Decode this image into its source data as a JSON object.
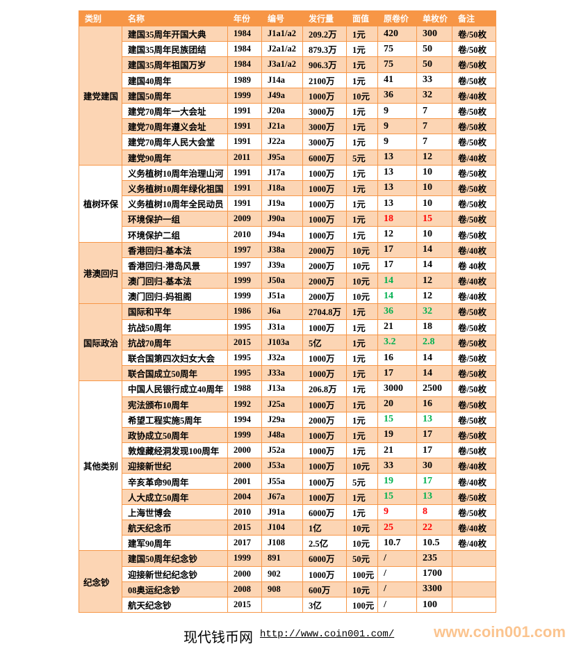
{
  "colors": {
    "header": "#f79646",
    "row_alt": "#fcd5b4",
    "red": "#ff0000",
    "green": "#00b050"
  },
  "headers": [
    "类别",
    "名称",
    "年份",
    "编号",
    "发行量",
    "面值",
    "原卷价",
    "单枚价",
    "备注"
  ],
  "groups": [
    {
      "category": "建党建国",
      "rows": [
        {
          "name": "建国35周年开国大典",
          "year": "1984",
          "code": "J1a1/a2",
          "issue": "209.2万",
          "face": "1元",
          "roll": "420",
          "single": "300",
          "note": "卷/50枚"
        },
        {
          "name": "建国35周年民族团结",
          "year": "1984",
          "code": "J2a1/a2",
          "issue": "879.3万",
          "face": "1元",
          "roll": "75",
          "single": "50",
          "note": "卷/50枚"
        },
        {
          "name": "建国35周年祖国万岁",
          "year": "1984",
          "code": "J3a1/a2",
          "issue": "906.3万",
          "face": "1元",
          "roll": "75",
          "single": "50",
          "note": "卷/50枚"
        },
        {
          "name": "建国40周年",
          "year": "1989",
          "code": "J14a",
          "issue": "2100万",
          "face": "1元",
          "roll": "41",
          "single": "33",
          "note": "卷/50枚"
        },
        {
          "name": "建国50周年",
          "year": "1999",
          "code": "J49a",
          "issue": "1000万",
          "face": "10元",
          "roll": "36",
          "single": "32",
          "note": "卷/40枚"
        },
        {
          "name": "建党70周年一大会址",
          "year": "1991",
          "code": "J20a",
          "issue": "3000万",
          "face": "1元",
          "roll": "9",
          "single": "7",
          "note": "卷/50枚"
        },
        {
          "name": "建党70周年遵义会址",
          "year": "1991",
          "code": "J21a",
          "issue": "3000万",
          "face": "1元",
          "roll": "9",
          "single": "7",
          "note": "卷/50枚"
        },
        {
          "name": "建党70周年人民大会堂",
          "year": "1991",
          "code": "J22a",
          "issue": "3000万",
          "face": "1元",
          "roll": "9",
          "single": "7",
          "note": "卷/50枚"
        },
        {
          "name": "建党90周年",
          "year": "2011",
          "code": "J95a",
          "issue": "6000万",
          "face": "5元",
          "roll": "13",
          "single": "12",
          "note": "卷/40枚"
        }
      ]
    },
    {
      "category": "植树环保",
      "rows": [
        {
          "name": "义务植树10周年治理山河",
          "year": "1991",
          "code": "J17a",
          "issue": "1000万",
          "face": "1元",
          "roll": "13",
          "single": "10",
          "note": "卷/50枚"
        },
        {
          "name": "义务植树10周年绿化祖国",
          "year": "1991",
          "code": "J18a",
          "issue": "1000万",
          "face": "1元",
          "roll": "13",
          "single": "10",
          "note": "卷/50枚"
        },
        {
          "name": "义务植树10周年全民动员",
          "year": "1991",
          "code": "J19a",
          "issue": "1000万",
          "face": "1元",
          "roll": "13",
          "single": "10",
          "note": "卷/50枚"
        },
        {
          "name": "环境保护一组",
          "year": "2009",
          "code": "J90a",
          "issue": "1000万",
          "face": "1元",
          "roll": "18",
          "single": "15",
          "note": "卷/50枚",
          "price_color": "red"
        },
        {
          "name": "环境保护二组",
          "year": "2010",
          "code": "J94a",
          "issue": "1000万",
          "face": "1元",
          "roll": "12",
          "single": "10",
          "note": "卷/50枚"
        }
      ]
    },
    {
      "category": "港澳回归",
      "rows": [
        {
          "name": "香港回归-基本法",
          "year": "1997",
          "code": "J38a",
          "issue": "2000万",
          "face": "10元",
          "roll": "17",
          "single": "14",
          "note": "卷/40枚"
        },
        {
          "name": "香港回归-港岛风景",
          "year": "1997",
          "code": "J39a",
          "issue": "2000万",
          "face": "10元",
          "roll": "17",
          "single": "14",
          "note": "卷 40枚"
        },
        {
          "name": "澳门回归-基本法",
          "year": "1999",
          "code": "J50a",
          "issue": "2000万",
          "face": "10元",
          "roll": "14",
          "single": "12",
          "note": "卷/40枚",
          "roll_color": "green"
        },
        {
          "name": "澳门回归-妈祖阁",
          "year": "1999",
          "code": "J51a",
          "issue": "2000万",
          "face": "10元",
          "roll": "14",
          "single": "12",
          "note": "卷/40枚",
          "roll_color": "green"
        }
      ]
    },
    {
      "category": "国际政治",
      "rows": [
        {
          "name": "国际和平年",
          "year": "1986",
          "code": "J6a",
          "issue": "2704.8万",
          "face": "1元",
          "roll": "36",
          "single": "32",
          "note": "卷/50枚",
          "price_color": "green"
        },
        {
          "name": "抗战50周年",
          "year": "1995",
          "code": "J31a",
          "issue": "1000万",
          "face": "1元",
          "roll": "21",
          "single": "18",
          "note": "卷/50枚"
        },
        {
          "name": "抗战70周年",
          "year": "2015",
          "code": "J103a",
          "issue": "5亿",
          "face": "1元",
          "roll": "3.2",
          "single": "2.8",
          "note": "卷/50枚",
          "price_color": "green"
        },
        {
          "name": "联合国第四次妇女大会",
          "year": "1995",
          "code": "J32a",
          "issue": "1000万",
          "face": "1元",
          "roll": "16",
          "single": "14",
          "note": "卷/50枚"
        },
        {
          "name": "联合国成立50周年",
          "year": "1995",
          "code": "J33a",
          "issue": "1000万",
          "face": "1元",
          "roll": "17",
          "single": "14",
          "note": "卷/50枚"
        }
      ]
    },
    {
      "category": "其他类别",
      "rows": [
        {
          "name": "中国人民银行成立40周年",
          "year": "1988",
          "code": "J13a",
          "issue": "206.8万",
          "face": "1元",
          "roll": "3000",
          "single": "2500",
          "note": "卷/50枚"
        },
        {
          "name": "宪法颁布10周年",
          "year": "1992",
          "code": "J25a",
          "issue": "1000万",
          "face": "1元",
          "roll": "20",
          "single": "16",
          "note": "卷/50枚"
        },
        {
          "name": "希望工程实施5周年",
          "year": "1994",
          "code": "J29a",
          "issue": "2000万",
          "face": "1元",
          "roll": "15",
          "single": "13",
          "note": "卷/50枚",
          "price_color": "green"
        },
        {
          "name": "政协成立50周年",
          "year": "1999",
          "code": "J48a",
          "issue": "1000万",
          "face": "1元",
          "roll": "19",
          "single": "17",
          "note": "卷/50枚"
        },
        {
          "name": "敦煌藏经洞发现100周年",
          "year": "2000",
          "code": "J52a",
          "issue": "1000万",
          "face": "1元",
          "roll": "21",
          "single": "17",
          "note": "卷/50枚"
        },
        {
          "name": "迎接新世纪",
          "year": "2000",
          "code": "J53a",
          "issue": "1000万",
          "face": "10元",
          "roll": "33",
          "single": "30",
          "note": "卷/40枚"
        },
        {
          "name": "辛亥革命90周年",
          "year": "2001",
          "code": "J55a",
          "issue": "1000万",
          "face": "5元",
          "roll": "19",
          "single": "17",
          "note": "卷/40枚",
          "price_color": "green"
        },
        {
          "name": "人大成立50周年",
          "year": "2004",
          "code": "J67a",
          "issue": "1000万",
          "face": "1元",
          "roll": "15",
          "single": "13",
          "note": "卷/50枚",
          "price_color": "green"
        },
        {
          "name": "上海世博会",
          "year": "2010",
          "code": "J91a",
          "issue": "6000万",
          "face": "1元",
          "roll": "9",
          "single": "8",
          "note": "卷/50枚",
          "price_color": "red"
        },
        {
          "name": "航天纪念币",
          "year": "2015",
          "code": "J104",
          "issue": "1亿",
          "face": "10元",
          "roll": "25",
          "single": "22",
          "note": "卷/40枚",
          "price_color": "red"
        },
        {
          "name": "建军90周年",
          "year": "2017",
          "code": "J108",
          "issue": "2.5亿",
          "face": "10元",
          "roll": "10.7",
          "single": "10.5",
          "note": "卷/40枚"
        }
      ]
    },
    {
      "category": "纪念钞",
      "rows": [
        {
          "name": "建国50周年纪念钞",
          "year": "1999",
          "code": "891",
          "issue": "6000万",
          "face": "50元",
          "roll": "/",
          "single": "235",
          "note": ""
        },
        {
          "name": "迎接新世纪纪念钞",
          "year": "2000",
          "code": "902",
          "issue": "1000万",
          "face": "100元",
          "roll": "/",
          "single": "1700",
          "note": ""
        },
        {
          "name": "08奥运纪念钞",
          "year": "2008",
          "code": "908",
          "issue": "600万",
          "face": "10元",
          "roll": "/",
          "single": "3300",
          "note": ""
        },
        {
          "name": "航天纪念钞",
          "year": "2015",
          "code": "",
          "issue": "3亿",
          "face": "100元",
          "roll": "/",
          "single": "100",
          "note": ""
        }
      ]
    }
  ],
  "footer": {
    "site_name": "现代钱币网",
    "url": "http://www.coin001.com/",
    "watermark": "www.coin001.com"
  }
}
